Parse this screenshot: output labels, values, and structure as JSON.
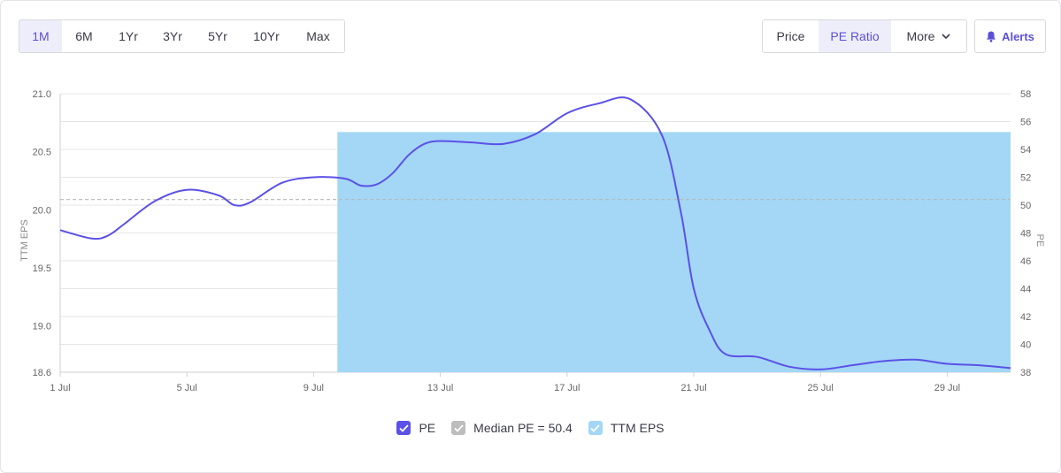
{
  "range_buttons": [
    {
      "label": "1M",
      "active": true
    },
    {
      "label": "6M"
    },
    {
      "label": "1Yr"
    },
    {
      "label": "3Yr"
    },
    {
      "label": "5Yr"
    },
    {
      "label": "10Yr"
    },
    {
      "label": "Max"
    }
  ],
  "mode_buttons": {
    "price": "Price",
    "pe_ratio": "PE Ratio",
    "more": "More",
    "active": "pe_ratio"
  },
  "alerts_label": "Alerts",
  "icons": {
    "more": "chevron-down-icon",
    "alerts": "bell-icon",
    "legend_check": "checkmark-icon"
  },
  "colors": {
    "accent": "#5b51d8",
    "pe_line": "#5b51e6",
    "ttm_fill": "#a3d7f5",
    "median": "#b8b8b8",
    "grid": "#e6e6ea",
    "axis_text": "#666666"
  },
  "legend": [
    {
      "key": "pe",
      "label": "PE",
      "color": "#5b51e6"
    },
    {
      "key": "median",
      "label": "Median PE = 50.4",
      "color": "#bdbdbd"
    },
    {
      "key": "ttm",
      "label": "TTM EPS",
      "color": "#a3d7f5"
    }
  ],
  "chart_data": {
    "type": "line",
    "x_tick_labels": [
      "1 Jul",
      "5 Jul",
      "9 Jul",
      "13 Jul",
      "17 Jul",
      "21 Jul",
      "25 Jul",
      "29 Jul"
    ],
    "x_tick_days": [
      1,
      5,
      9,
      13,
      17,
      21,
      25,
      29
    ],
    "xlim": [
      1,
      31
    ],
    "left_axis": {
      "label": "TTM EPS",
      "ylim": [
        18.6,
        21.0
      ],
      "ticks": [
        "18.6",
        "19.0",
        "19.5",
        "20.0",
        "20.5",
        "21.0"
      ]
    },
    "right_axis": {
      "label": "PE",
      "ylim": [
        38,
        58
      ],
      "ticks": [
        "38",
        "40",
        "42",
        "44",
        "46",
        "48",
        "50",
        "52",
        "54",
        "56",
        "58"
      ]
    },
    "grid": true,
    "series": [
      {
        "name": "PE",
        "axis": "right",
        "x": [
          1,
          2,
          2.5,
          3,
          4,
          5,
          6,
          6.5,
          7,
          8,
          9,
          10,
          10.5,
          11,
          11.5,
          12,
          12.5,
          13,
          14,
          15,
          16,
          17,
          18,
          19,
          20,
          20.6,
          21,
          21.5,
          22,
          23,
          24,
          25,
          26,
          27,
          28,
          29,
          30,
          31
        ],
        "y": [
          48.2,
          47.6,
          47.8,
          48.6,
          50.3,
          51.1,
          50.7,
          50.0,
          50.2,
          51.6,
          52.0,
          51.9,
          51.4,
          51.5,
          52.3,
          53.6,
          54.4,
          54.6,
          54.5,
          54.4,
          55.1,
          56.6,
          57.3,
          57.6,
          55.0,
          49.4,
          44.0,
          41.0,
          39.3,
          39.1,
          38.4,
          38.2,
          38.5,
          38.8,
          38.9,
          38.6,
          38.5,
          38.3
        ]
      },
      {
        "name": "TTM EPS",
        "axis": "left",
        "type": "area",
        "start_day": 9.75,
        "end_day": 31,
        "value": 20.67
      }
    ],
    "median_pe": 50.4
  }
}
